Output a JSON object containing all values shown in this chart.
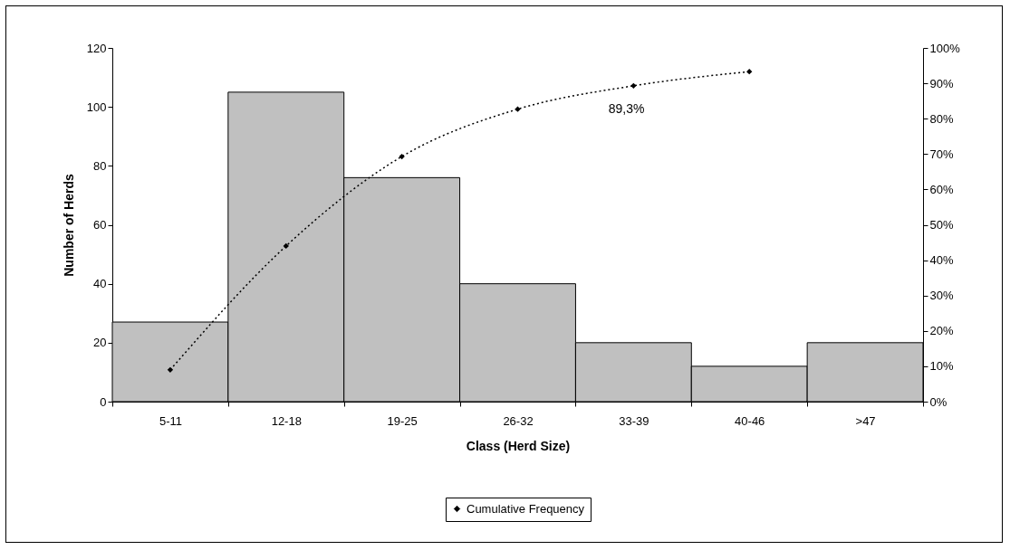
{
  "chart_data": {
    "type": "bar",
    "xlabel": "Class (Herd Size)",
    "ylabel": "Number of Herds",
    "categories": [
      "5-11",
      "12-18",
      "19-25",
      "26-32",
      "33-39",
      "40-46",
      ">47"
    ],
    "series": [
      {
        "color": "#c0c0c0",
        "values": [
          27,
          105,
          76,
          40,
          20,
          12,
          20
        ]
      },
      {
        "type": "line",
        "name": "Cumulative Frequency",
        "color": "#000000",
        "axis": "y2",
        "values": [
          9,
          44,
          69.3,
          82.7,
          89.3,
          93.3,
          null
        ]
      }
    ],
    "marker": "diamond",
    "line_style": "dotted",
    "grid": false,
    "legend": "bottom",
    "ylim": [
      0,
      120
    ],
    "yticks": [
      0,
      20,
      40,
      60,
      80,
      100,
      120
    ],
    "y2lim": [
      0,
      100
    ],
    "y2ticks": [
      {
        "value": 0,
        "label": "0%"
      },
      {
        "value": 10,
        "label": "10%"
      },
      {
        "value": 20,
        "label": "20%"
      },
      {
        "value": 30,
        "label": "30%"
      },
      {
        "value": 40,
        "label": "40%"
      },
      {
        "value": 50,
        "label": "50%"
      },
      {
        "value": 60,
        "label": "60%"
      },
      {
        "value": 70,
        "label": "70%"
      },
      {
        "value": 80,
        "label": "80%"
      },
      {
        "value": 90,
        "label": "90%"
      },
      {
        "value": 100,
        "label": "100%"
      }
    ],
    "annotations": [
      "89,3%"
    ]
  }
}
